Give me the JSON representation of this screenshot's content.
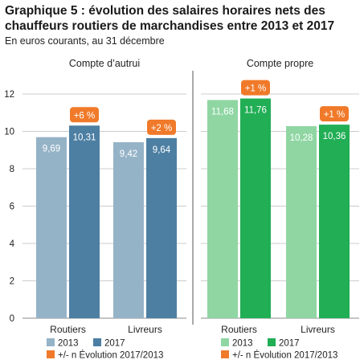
{
  "title_line1": "Graphique 5 : évolution des salaires horaires nets des",
  "title_line2": "chauffeurs routiers de marchandises entre 2013 et 2017",
  "subtitle": "En euros courants, au 31 décembre",
  "chart_data": [
    {
      "type": "bar",
      "title": "Compte d’autrui",
      "categories": [
        "Routiers",
        "Livreurs"
      ],
      "series": [
        {
          "name": "2013",
          "values": [
            9.69,
            9.42
          ],
          "labels": [
            "9,69",
            "9,42"
          ]
        },
        {
          "name": "2017",
          "values": [
            10.31,
            9.64
          ],
          "labels": [
            "10,31",
            "9,64"
          ]
        }
      ],
      "evolution": [
        "+6 %",
        "+2 %"
      ],
      "ylim": [
        0,
        12
      ],
      "yticks": [
        0,
        2,
        4,
        6,
        8,
        10,
        12
      ],
      "colors": {
        "2013": "#95b3c7",
        "2017": "#4d7fa3"
      },
      "legend": {
        "items": [
          "2013",
          "2017"
        ],
        "evolution_label": "+/- n Évolution 2017/2013",
        "placement": "bottom"
      },
      "grid": true
    },
    {
      "type": "bar",
      "title": "Compte propre",
      "categories": [
        "Routiers",
        "Livreurs"
      ],
      "series": [
        {
          "name": "2013",
          "values": [
            11.68,
            10.28
          ],
          "labels": [
            "11,68",
            "10,28"
          ]
        },
        {
          "name": "2017",
          "values": [
            11.76,
            10.36
          ],
          "labels": [
            "11,76",
            "10,36"
          ]
        }
      ],
      "evolution": [
        "+1 %",
        "+1 %"
      ],
      "ylim": [
        0,
        12
      ],
      "colors": {
        "2013": "#8fd6a3",
        "2017": "#21ae55"
      },
      "legend": {
        "items": [
          "2013",
          "2017"
        ],
        "evolution_label": "+/- n Évolution 2017/2013",
        "placement": "bottom"
      },
      "grid": true
    }
  ],
  "colors": {
    "evolution_badge": "#f07a2a",
    "grid": "#cccccc",
    "separator": "#555555"
  }
}
